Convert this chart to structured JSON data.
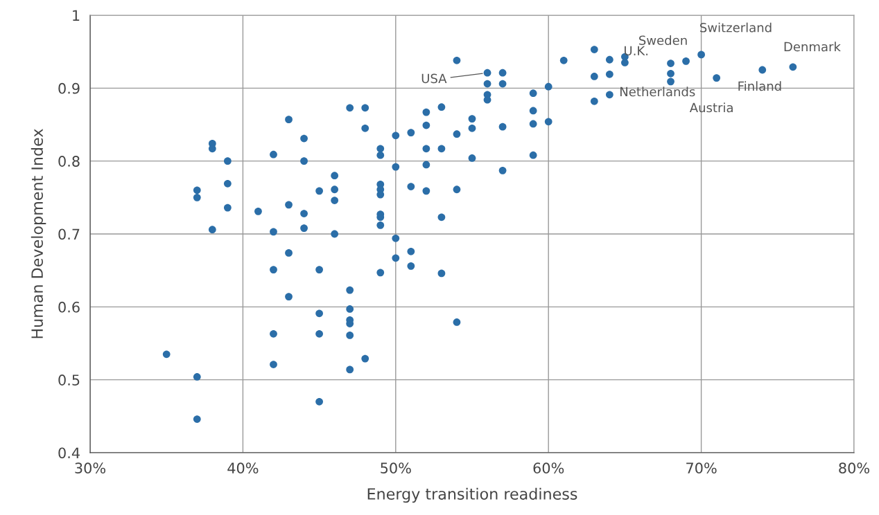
{
  "chart_data": {
    "type": "scatter",
    "xlabel": "Energy transition readiness",
    "ylabel": "Human Development Index",
    "x": [
      35,
      37,
      37,
      37,
      37,
      38,
      38,
      38,
      39,
      39,
      39,
      41,
      42,
      42,
      42,
      42,
      42,
      43,
      43,
      43,
      43,
      44,
      44,
      44,
      44,
      45,
      45,
      45,
      45,
      45,
      46,
      46,
      46,
      46,
      47,
      47,
      47,
      47,
      47,
      47,
      47,
      48,
      48,
      48,
      49,
      49,
      49,
      49,
      49,
      49,
      49,
      49,
      49,
      50,
      50,
      50,
      50,
      51,
      51,
      51,
      51,
      52,
      52,
      52,
      52,
      52,
      53,
      53,
      53,
      53,
      54,
      54,
      54,
      54,
      55,
      55,
      55,
      56,
      56,
      56,
      56,
      57,
      57,
      57,
      57,
      59,
      59,
      59,
      59,
      60,
      60,
      61,
      63,
      63,
      63,
      64,
      64,
      64,
      65,
      65,
      68,
      68,
      68,
      69,
      70,
      71,
      74,
      76
    ],
    "series": [
      {
        "color": "#2b6ea8",
        "values": [
          0.535,
          0.76,
          0.75,
          0.504,
          0.446,
          0.824,
          0.817,
          0.706,
          0.8,
          0.769,
          0.736,
          0.731,
          0.809,
          0.703,
          0.651,
          0.563,
          0.521,
          0.857,
          0.74,
          0.674,
          0.614,
          0.831,
          0.8,
          0.728,
          0.708,
          0.759,
          0.651,
          0.591,
          0.563,
          0.47,
          0.78,
          0.761,
          0.746,
          0.7,
          0.873,
          0.623,
          0.597,
          0.582,
          0.577,
          0.561,
          0.514,
          0.873,
          0.845,
          0.529,
          0.817,
          0.808,
          0.768,
          0.761,
          0.754,
          0.727,
          0.723,
          0.712,
          0.647,
          0.835,
          0.792,
          0.694,
          0.667,
          0.839,
          0.765,
          0.676,
          0.656,
          0.867,
          0.849,
          0.817,
          0.795,
          0.759,
          0.874,
          0.817,
          0.723,
          0.646,
          0.938,
          0.837,
          0.761,
          0.579,
          0.858,
          0.845,
          0.804,
          0.921,
          0.906,
          0.891,
          0.884,
          0.921,
          0.906,
          0.847,
          0.787,
          0.893,
          0.869,
          0.851,
          0.808,
          0.902,
          0.854,
          0.938,
          0.953,
          0.916,
          0.882,
          0.939,
          0.919,
          0.891,
          0.943,
          0.935,
          0.934,
          0.92,
          0.909,
          0.937,
          0.946,
          0.914,
          0.925,
          0.929
        ]
      }
    ],
    "xlim": [
      30,
      80
    ],
    "xticks": [
      {
        "value": 30,
        "label": "30%"
      },
      {
        "value": 40,
        "label": "40%"
      },
      {
        "value": 50,
        "label": "50%"
      },
      {
        "value": 60,
        "label": "60%"
      },
      {
        "value": 70,
        "label": "70%"
      },
      {
        "value": 80,
        "label": "80%"
      }
    ],
    "ylim": [
      0.4,
      1
    ],
    "yticks": [
      {
        "value": 0.4,
        "label": "0.4"
      },
      {
        "value": 0.5,
        "label": "0.5"
      },
      {
        "value": 0.6,
        "label": "0.6"
      },
      {
        "value": 0.7,
        "label": "0.7"
      },
      {
        "value": 0.8,
        "label": "0.8"
      },
      {
        "value": 0.9,
        "label": "0.9"
      },
      {
        "value": 1,
        "label": "1"
      }
    ],
    "grid": true,
    "marker": "circle",
    "annotations": [
      {
        "text": "USA",
        "x": 56,
        "y": 0.921
      },
      {
        "text": "Sweden",
        "x": 65,
        "y": 0.943
      },
      {
        "text": "Switzerland",
        "x": 70,
        "y": 0.946
      },
      {
        "text": "Denmark",
        "x": 76,
        "y": 0.929
      },
      {
        "text": "U.K.",
        "x": 68,
        "y": 0.934
      },
      {
        "text": "Finland",
        "x": 74,
        "y": 0.925
      },
      {
        "text": "Netherlands",
        "x": 64,
        "y": 0.891
      },
      {
        "text": "Austria",
        "x": 71,
        "y": 0.914
      }
    ]
  }
}
